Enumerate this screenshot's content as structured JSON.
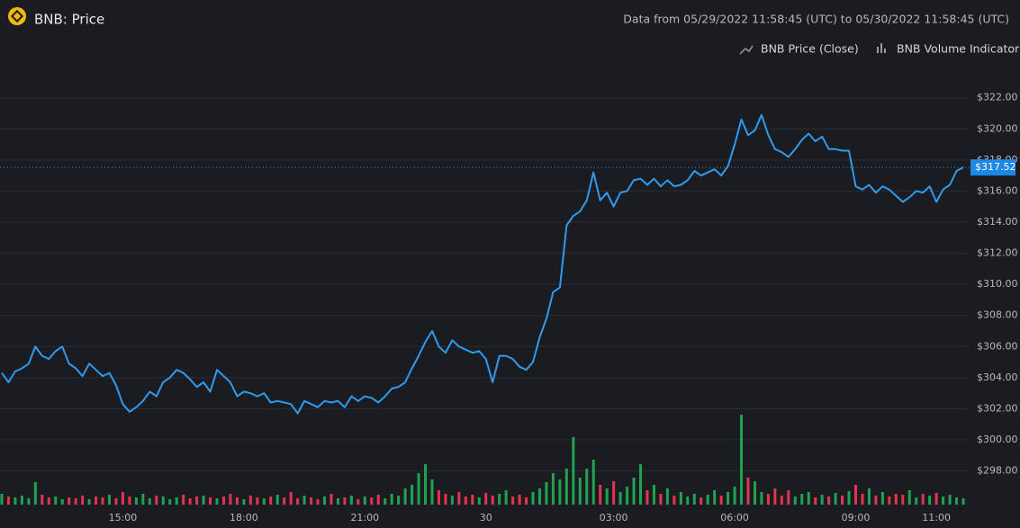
{
  "chart_data": {
    "type": "line",
    "title": "BNB: Price",
    "subtitle": "Data from 05/29/2022 11:58:45 (UTC) to 05/30/2022 11:58:45 (UTC)",
    "categories": [
      null,
      null,
      null,
      null,
      null,
      null,
      null,
      null,
      null,
      null,
      null,
      null,
      null,
      null,
      null,
      null,
      null,
      null,
      "15:00",
      null,
      null,
      null,
      null,
      null,
      null,
      null,
      null,
      null,
      null,
      null,
      null,
      null,
      null,
      null,
      null,
      null,
      "18:00",
      null,
      null,
      null,
      null,
      null,
      null,
      null,
      null,
      null,
      null,
      null,
      null,
      null,
      null,
      null,
      null,
      null,
      "21:00",
      null,
      null,
      null,
      null,
      null,
      null,
      null,
      null,
      null,
      null,
      null,
      null,
      null,
      null,
      null,
      null,
      null,
      "30",
      null,
      null,
      null,
      null,
      null,
      null,
      null,
      null,
      null,
      null,
      null,
      null,
      null,
      null,
      null,
      null,
      null,
      null,
      "03:00",
      null,
      null,
      null,
      null,
      null,
      null,
      null,
      null,
      null,
      null,
      null,
      null,
      null,
      null,
      null,
      null,
      null,
      "06:00",
      null,
      null,
      null,
      null,
      null,
      null,
      null,
      null,
      null,
      null,
      null,
      null,
      null,
      null,
      null,
      null,
      null,
      "09:00",
      null,
      null,
      null,
      null,
      null,
      null,
      null,
      null,
      null,
      null,
      null,
      "11:00",
      null,
      null,
      null,
      null
    ],
    "series": [
      {
        "name": "BNB Price (Close)",
        "color": "#2f9bf0",
        "values": [
          304.3,
          303.7,
          304.4,
          304.6,
          304.9,
          306.0,
          305.4,
          305.2,
          305.7,
          306.0,
          304.9,
          304.6,
          304.1,
          304.9,
          304.5,
          304.1,
          304.3,
          303.5,
          302.3,
          301.8,
          302.1,
          302.5,
          303.1,
          302.8,
          303.7,
          304.0,
          304.5,
          304.3,
          303.9,
          303.4,
          303.7,
          303.1,
          304.5,
          304.1,
          303.7,
          302.8,
          303.1,
          303.0,
          302.8,
          303.0,
          302.4,
          302.5,
          302.4,
          302.3,
          301.7,
          302.5,
          302.3,
          302.1,
          302.5,
          302.4,
          302.5,
          302.1,
          302.8,
          302.5,
          302.8,
          302.7,
          302.4,
          302.8,
          303.3,
          303.4,
          303.7,
          304.6,
          305.4,
          306.3,
          307.0,
          306.0,
          305.6,
          306.4,
          306.0,
          305.8,
          305.6,
          305.7,
          305.2,
          303.7,
          305.4,
          305.4,
          305.2,
          304.7,
          304.5,
          305.0,
          306.6,
          307.8,
          309.5,
          309.8,
          313.8,
          314.4,
          314.7,
          315.4,
          317.2,
          315.4,
          315.9,
          315.0,
          315.9,
          316.0,
          316.7,
          316.8,
          316.4,
          316.8,
          316.3,
          316.7,
          316.3,
          316.4,
          316.7,
          317.3,
          317.0,
          317.2,
          317.4,
          317.0,
          317.6,
          319.0,
          320.6,
          319.6,
          319.9,
          320.9,
          319.6,
          318.7,
          318.5,
          318.2,
          318.7,
          319.3,
          319.7,
          319.2,
          319.5,
          318.7,
          318.7,
          318.6,
          318.6,
          316.3,
          316.1,
          316.4,
          315.9,
          316.3,
          316.1,
          315.7,
          315.3,
          315.6,
          316.0,
          315.9,
          316.3,
          315.3,
          316.1,
          316.4,
          317.3,
          317.52
        ]
      },
      {
        "name": "BNB Volume Indicator",
        "type": "bar",
        "up_color": "#1fa350",
        "down_color": "#e2344f",
        "values": [
          12,
          9,
          8,
          10,
          7,
          25,
          11,
          8,
          9,
          6,
          8,
          7,
          10,
          6,
          9,
          8,
          11,
          7,
          14,
          9,
          8,
          12,
          7,
          10,
          9,
          6,
          8,
          11,
          7,
          9,
          10,
          8,
          7,
          9,
          12,
          8,
          6,
          10,
          8,
          7,
          9,
          11,
          8,
          14,
          7,
          10,
          8,
          6,
          9,
          12,
          7,
          8,
          10,
          6,
          9,
          8,
          11,
          7,
          12,
          10,
          18,
          22,
          35,
          45,
          28,
          16,
          12,
          10,
          14,
          9,
          11,
          8,
          13,
          10,
          12,
          16,
          9,
          11,
          8,
          14,
          18,
          25,
          35,
          28,
          40,
          75,
          30,
          40,
          50,
          22,
          18,
          26,
          14,
          20,
          30,
          45,
          16,
          22,
          12,
          18,
          10,
          14,
          9,
          12,
          8,
          11,
          16,
          10,
          14,
          20,
          100,
          30,
          26,
          14,
          12,
          18,
          10,
          16,
          9,
          12,
          14,
          8,
          11,
          9,
          13,
          10,
          15,
          22,
          12,
          18,
          10,
          14,
          9,
          12,
          11,
          16,
          8,
          12,
          10,
          13,
          9,
          11,
          8,
          7
        ]
      }
    ],
    "ylim": [
      295.6,
      323.2
    ],
    "yticks": [
      {
        "value": 298,
        "label": "$298.00"
      },
      {
        "value": 300,
        "label": "$300.00"
      },
      {
        "value": 302,
        "label": "$302.00"
      },
      {
        "value": 304,
        "label": "$304.00"
      },
      {
        "value": 306,
        "label": "$306.00"
      },
      {
        "value": 308,
        "label": "$308.00"
      },
      {
        "value": 310,
        "label": "$310.00"
      },
      {
        "value": 312,
        "label": "$312.00"
      },
      {
        "value": 314,
        "label": "$314.00"
      },
      {
        "value": 316,
        "label": "$316.00"
      },
      {
        "value": 318,
        "label": "$318.00"
      },
      {
        "value": 320,
        "label": "$320.00"
      },
      {
        "value": 322,
        "label": "$322.00"
      }
    ],
    "grid": true,
    "last_price": {
      "value": 317.52,
      "label": "$317.52"
    }
  }
}
